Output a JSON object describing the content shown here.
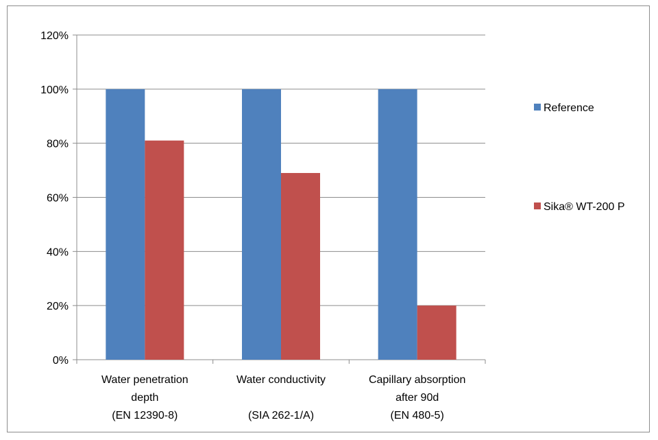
{
  "chart_data": {
    "type": "bar",
    "title": "",
    "xlabel": "",
    "ylabel": "",
    "ylim": [
      0,
      120
    ],
    "yticks": [
      0,
      20,
      40,
      60,
      80,
      100,
      120
    ],
    "ytick_labels": [
      "0%",
      "20%",
      "40%",
      "60%",
      "80%",
      "100%",
      "120%"
    ],
    "categories": [
      [
        "Water penetration",
        "depth",
        "(EN 12390-8)"
      ],
      [
        "Water conductivity",
        "",
        "(SIA 262-1/A)"
      ],
      [
        "Capillary absorption",
        "after 90d",
        "(EN 480-5)"
      ]
    ],
    "series": [
      {
        "name": "Reference",
        "color": "#4f81bd",
        "values": [
          100,
          100,
          100
        ]
      },
      {
        "name": "Sika® WT-200 P",
        "color": "#c0504d",
        "values": [
          81,
          69,
          20
        ]
      }
    ],
    "grid": true,
    "legend": "right"
  }
}
